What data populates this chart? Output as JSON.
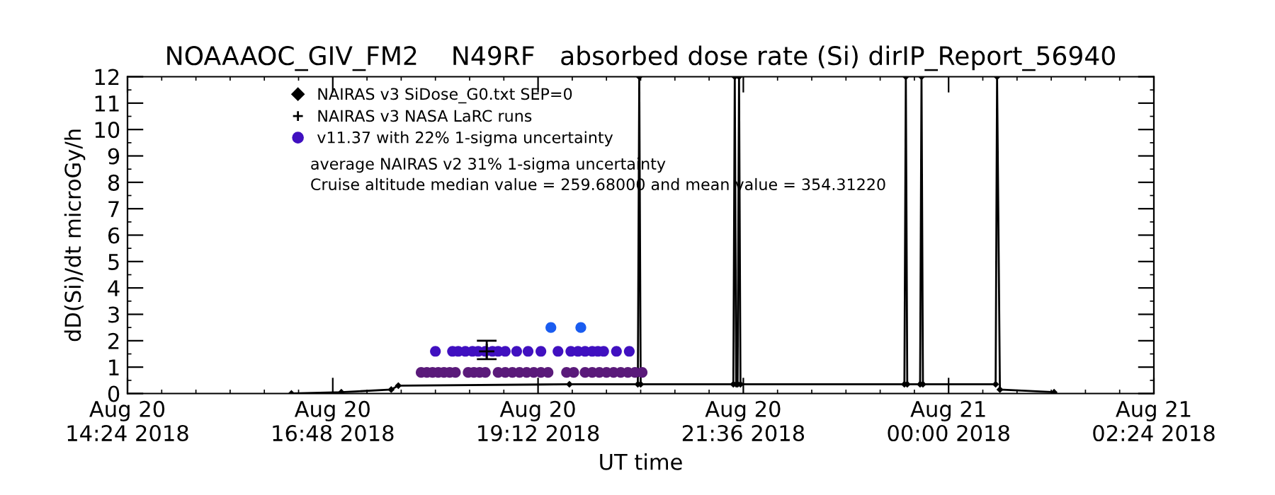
{
  "chart_data": {
    "type": "line",
    "title": "NOAAAOC_GIV_FM2    N49RF   absorbed dose rate (Si) dirIP_Report_56940",
    "xlabel": "UT time",
    "ylabel": "dD(Si)/dt microGy/h",
    "xlim": [
      "2018-08-20T14:24",
      "2018-08-21T02:24"
    ],
    "xticks": [
      {
        "value": "2018-08-20T14:24",
        "label": "Aug 20\n14:24 2018"
      },
      {
        "value": "2018-08-20T16:48",
        "label": "Aug 20\n16:48 2018"
      },
      {
        "value": "2018-08-20T19:12",
        "label": "Aug 20\n19:12 2018"
      },
      {
        "value": "2018-08-20T21:36",
        "label": "Aug 20\n21:36 2018"
      },
      {
        "value": "2018-08-21T00:00",
        "label": "Aug 21\n00:00 2018"
      },
      {
        "value": "2018-08-21T02:24",
        "label": "Aug 21\n02:24 2018"
      }
    ],
    "ylim": [
      0,
      12
    ],
    "yticks": [
      0,
      1,
      2,
      3,
      4,
      5,
      6,
      7,
      8,
      9,
      10,
      11,
      12
    ],
    "grid": false,
    "legend": "top left",
    "annotations": [
      "average NAIRAS v2 31% 1-sigma uncertainty",
      "Cruise altitude median value = 259.68000 and mean value = 354.31220"
    ],
    "series": [
      {
        "name": "NAIRAS v3 SiDose_G0.txt SEP=0",
        "marker": "diamond",
        "color": "#000000",
        "x": [
          "2018-08-20T16:19",
          "2018-08-20T16:54",
          "2018-08-20T17:29",
          "2018-08-20T17:34",
          "2018-08-20T19:34",
          "2018-08-20T20:22",
          "2018-08-20T20:23",
          "2018-08-20T20:24",
          "2018-08-20T21:29",
          "2018-08-20T21:30",
          "2018-08-20T21:31",
          "2018-08-20T21:32",
          "2018-08-20T21:33",
          "2018-08-20T21:34",
          "2018-08-20T23:29",
          "2018-08-20T23:30",
          "2018-08-20T23:31",
          "2018-08-20T23:40",
          "2018-08-20T23:41",
          "2018-08-20T23:42",
          "2018-08-21T00:33",
          "2018-08-21T00:34",
          "2018-08-21T00:36",
          "2018-08-21T01:14"
        ],
        "values": [
          0.0,
          0.05,
          0.15,
          0.3,
          0.35,
          0.35,
          12,
          0.35,
          0.35,
          12,
          0.35,
          0.35,
          12,
          0.35,
          0.35,
          12,
          0.35,
          0.35,
          12,
          0.35,
          0.35,
          12,
          0.15,
          0.05
        ]
      },
      {
        "name": "NAIRAS v3 NASA LaRC runs",
        "type": "scatter",
        "marker": "cross",
        "color": "#000000",
        "x": [
          "2018-08-20T18:36"
        ],
        "values": [
          1.6
        ],
        "errors": [
          [
            1.3,
            2.0
          ]
        ]
      },
      {
        "name": "v11.37 with 22% 1-sigma uncertainty",
        "type": "scatter",
        "marker": "circle",
        "color": "#4010c0",
        "x": [
          "2018-08-20T17:50",
          "2018-08-20T17:54",
          "2018-08-20T17:58",
          "2018-08-20T18:02",
          "2018-08-20T18:06",
          "2018-08-20T18:10",
          "2018-08-20T18:14",
          "2018-08-20T18:23",
          "2018-08-20T18:27",
          "2018-08-20T18:31",
          "2018-08-20T18:35",
          "2018-08-20T18:44",
          "2018-08-20T18:49",
          "2018-08-20T18:54",
          "2018-08-20T18:59",
          "2018-08-20T19:04",
          "2018-08-20T19:09",
          "2018-08-20T19:14",
          "2018-08-20T19:19",
          "2018-08-20T19:32",
          "2018-08-20T19:37",
          "2018-08-20T19:45",
          "2018-08-20T19:50",
          "2018-08-20T19:55",
          "2018-08-20T20:00",
          "2018-08-20T20:05",
          "2018-08-20T20:10",
          "2018-08-20T20:15",
          "2018-08-20T20:20",
          "2018-08-20T20:25",
          "2018-08-20T18:00",
          "2018-08-20T18:12",
          "2018-08-20T18:16",
          "2018-08-20T18:21",
          "2018-08-20T18:26",
          "2018-08-20T18:30",
          "2018-08-20T18:35",
          "2018-08-20T18:40",
          "2018-08-20T18:44",
          "2018-08-20T18:49",
          "2018-08-20T18:57",
          "2018-08-20T19:05",
          "2018-08-20T19:14",
          "2018-08-20T19:26",
          "2018-08-20T19:35",
          "2018-08-20T19:40",
          "2018-08-20T19:45",
          "2018-08-20T19:50",
          "2018-08-20T19:54",
          "2018-08-20T19:58",
          "2018-08-20T20:07",
          "2018-08-20T20:16",
          "2018-08-20T19:21",
          "2018-08-20T19:42"
        ],
        "values": [
          0.8,
          0.8,
          0.8,
          0.8,
          0.8,
          0.8,
          0.8,
          0.8,
          0.8,
          0.8,
          0.8,
          0.8,
          0.8,
          0.8,
          0.8,
          0.8,
          0.8,
          0.8,
          0.8,
          0.8,
          0.8,
          0.8,
          0.8,
          0.8,
          0.8,
          0.8,
          0.8,
          0.8,
          0.8,
          0.8,
          1.6,
          1.6,
          1.6,
          1.6,
          1.6,
          1.6,
          1.6,
          1.6,
          1.6,
          1.6,
          1.6,
          1.6,
          1.6,
          1.6,
          1.6,
          1.6,
          1.6,
          1.6,
          1.6,
          1.6,
          1.6,
          1.6,
          2.5,
          2.5
        ],
        "colors": [
          "#5a1a7a",
          "#5a1a7a",
          "#5a1a7a",
          "#5a1a7a",
          "#5a1a7a",
          "#5a1a7a",
          "#5a1a7a",
          "#5a1a7a",
          "#5a1a7a",
          "#5a1a7a",
          "#5a1a7a",
          "#5a1a7a",
          "#5a1a7a",
          "#5a1a7a",
          "#5a1a7a",
          "#5a1a7a",
          "#5a1a7a",
          "#5a1a7a",
          "#5a1a7a",
          "#5a1a7a",
          "#5a1a7a",
          "#5a1a7a",
          "#5a1a7a",
          "#5a1a7a",
          "#5a1a7a",
          "#5a1a7a",
          "#5a1a7a",
          "#5a1a7a",
          "#5a1a7a",
          "#5a1a7a",
          "#4010c0",
          "#4010c0",
          "#4010c0",
          "#4010c0",
          "#4010c0",
          "#4010c0",
          "#4010c0",
          "#4010c0",
          "#4010c0",
          "#4010c0",
          "#4010c0",
          "#4010c0",
          "#4010c0",
          "#4010c0",
          "#4010c0",
          "#4010c0",
          "#4010c0",
          "#4010c0",
          "#4010c0",
          "#4010c0",
          "#4010c0",
          "#4010c0",
          "#1a5cf0",
          "#1a5cf0"
        ]
      }
    ]
  }
}
